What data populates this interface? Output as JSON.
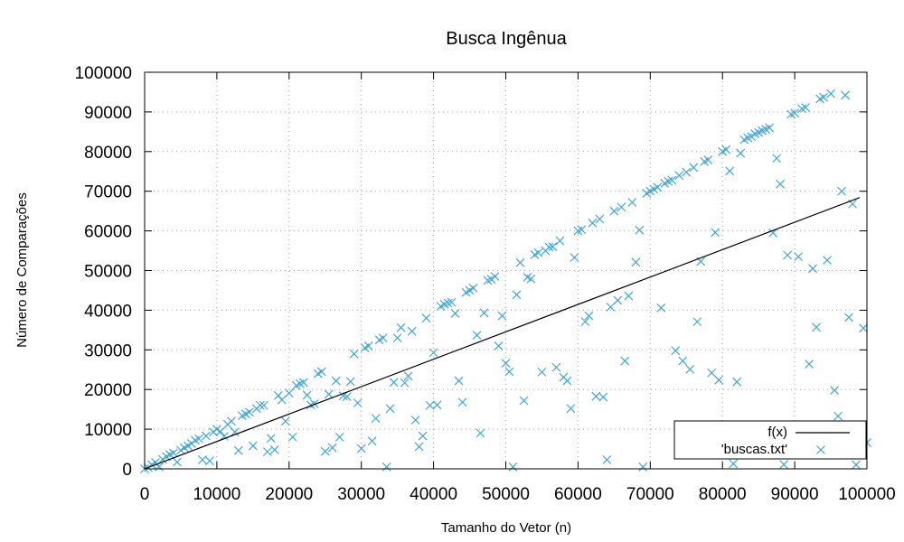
{
  "chart_data": {
    "type": "scatter",
    "title": "Busca Ingênua",
    "xlabel": "Tamanho do Vetor (n)",
    "ylabel": "Número de Comparações",
    "xlim": [
      0,
      100000
    ],
    "ylim": [
      0,
      100000
    ],
    "xticks": [
      0,
      10000,
      20000,
      30000,
      40000,
      50000,
      60000,
      70000,
      80000,
      90000,
      100000
    ],
    "yticks": [
      0,
      10000,
      20000,
      30000,
      40000,
      50000,
      60000,
      70000,
      80000,
      90000,
      100000
    ],
    "grid": true,
    "legend_position": "bottom-right",
    "colors": {
      "scatter": "#3fa6d8",
      "line": "#000000"
    },
    "series": [
      {
        "name": "f(x)",
        "type": "line",
        "points": [
          [
            0,
            0
          ],
          [
            99000,
            68400
          ]
        ]
      },
      {
        "name": "'buscas.txt'",
        "type": "scatter",
        "marker": "x",
        "points": [
          [
            0,
            0
          ],
          [
            500,
            300
          ],
          [
            1000,
            1000
          ],
          [
            1500,
            1600
          ],
          [
            2000,
            500
          ],
          [
            2500,
            2400
          ],
          [
            3000,
            3100
          ],
          [
            3500,
            3600
          ],
          [
            4000,
            4000
          ],
          [
            4500,
            1700
          ],
          [
            5000,
            4700
          ],
          [
            5500,
            5300
          ],
          [
            6000,
            5800
          ],
          [
            6500,
            6400
          ],
          [
            7000,
            7200
          ],
          [
            7500,
            7600
          ],
          [
            8000,
            2300
          ],
          [
            8500,
            8300
          ],
          [
            9000,
            2000
          ],
          [
            9500,
            9300
          ],
          [
            10000,
            10000
          ],
          [
            10500,
            9400
          ],
          [
            11000,
            8200
          ],
          [
            11500,
            11200
          ],
          [
            12000,
            12000
          ],
          [
            12500,
            9300
          ],
          [
            13000,
            4600
          ],
          [
            13500,
            13400
          ],
          [
            14000,
            13800
          ],
          [
            14500,
            14300
          ],
          [
            15000,
            5800
          ],
          [
            15500,
            15200
          ],
          [
            16000,
            16000
          ],
          [
            16500,
            16000
          ],
          [
            17000,
            4300
          ],
          [
            17500,
            7700
          ],
          [
            18000,
            4800
          ],
          [
            18500,
            18500
          ],
          [
            19000,
            17400
          ],
          [
            19500,
            12000
          ],
          [
            20000,
            19100
          ],
          [
            20500,
            8000
          ],
          [
            21000,
            21000
          ],
          [
            21500,
            21500
          ],
          [
            22000,
            21800
          ],
          [
            22500,
            18600
          ],
          [
            23000,
            16100
          ],
          [
            23500,
            16400
          ],
          [
            24000,
            24000
          ],
          [
            24500,
            24500
          ],
          [
            25000,
            4400
          ],
          [
            25500,
            18800
          ],
          [
            26000,
            5300
          ],
          [
            26500,
            22200
          ],
          [
            27000,
            8000
          ],
          [
            27500,
            18400
          ],
          [
            28000,
            18200
          ],
          [
            28500,
            22000
          ],
          [
            29000,
            29000
          ],
          [
            29500,
            16600
          ],
          [
            30000,
            5100
          ],
          [
            30500,
            30500
          ],
          [
            31000,
            31000
          ],
          [
            31500,
            7000
          ],
          [
            32000,
            12700
          ],
          [
            32500,
            32500
          ],
          [
            33000,
            33000
          ],
          [
            33500,
            500
          ],
          [
            34000,
            15200
          ],
          [
            34500,
            21800
          ],
          [
            35000,
            33000
          ],
          [
            35500,
            35600
          ],
          [
            36000,
            21700
          ],
          [
            36500,
            23400
          ],
          [
            37000,
            34700
          ],
          [
            37500,
            12300
          ],
          [
            38000,
            5600
          ],
          [
            38500,
            8300
          ],
          [
            39000,
            38000
          ],
          [
            39500,
            16000
          ],
          [
            40000,
            29300
          ],
          [
            40500,
            16100
          ],
          [
            41000,
            41000
          ],
          [
            41500,
            41500
          ],
          [
            42000,
            41800
          ],
          [
            42500,
            42000
          ],
          [
            43000,
            39200
          ],
          [
            43500,
            22200
          ],
          [
            44000,
            16800
          ],
          [
            44500,
            44500
          ],
          [
            45000,
            45000
          ],
          [
            45500,
            45600
          ],
          [
            46000,
            33700
          ],
          [
            46500,
            9000
          ],
          [
            47000,
            39300
          ],
          [
            47500,
            47500
          ],
          [
            48000,
            47800
          ],
          [
            48500,
            48500
          ],
          [
            49000,
            31000
          ],
          [
            49500,
            38600
          ],
          [
            50000,
            26600
          ],
          [
            50500,
            24500
          ],
          [
            51000,
            500
          ],
          [
            51500,
            43900
          ],
          [
            52000,
            52000
          ],
          [
            52500,
            17200
          ],
          [
            53000,
            48300
          ],
          [
            53500,
            47900
          ],
          [
            54000,
            54000
          ],
          [
            54500,
            54500
          ],
          [
            55000,
            24400
          ],
          [
            55500,
            55000
          ],
          [
            56000,
            55900
          ],
          [
            56500,
            56000
          ],
          [
            57000,
            25600
          ],
          [
            57500,
            57500
          ],
          [
            58000,
            23100
          ],
          [
            58500,
            22200
          ],
          [
            59000,
            15200
          ],
          [
            59500,
            53300
          ],
          [
            60000,
            60000
          ],
          [
            60500,
            60300
          ],
          [
            61000,
            37100
          ],
          [
            61500,
            38600
          ],
          [
            62000,
            62000
          ],
          [
            62500,
            18300
          ],
          [
            63000,
            63000
          ],
          [
            63500,
            18100
          ],
          [
            64000,
            2300
          ],
          [
            64500,
            40800
          ],
          [
            65000,
            65000
          ],
          [
            65500,
            42500
          ],
          [
            66000,
            66000
          ],
          [
            66500,
            27200
          ],
          [
            67000,
            43600
          ],
          [
            67500,
            67200
          ],
          [
            68000,
            52100
          ],
          [
            68500,
            60200
          ],
          [
            69000,
            500
          ],
          [
            69500,
            69500
          ],
          [
            70000,
            70000
          ],
          [
            70500,
            70500
          ],
          [
            71000,
            71000
          ],
          [
            71500,
            40600
          ],
          [
            72000,
            72000
          ],
          [
            72500,
            72500
          ],
          [
            73000,
            72800
          ],
          [
            73500,
            29800
          ],
          [
            74000,
            74000
          ],
          [
            74500,
            27200
          ],
          [
            75000,
            74800
          ],
          [
            75500,
            25100
          ],
          [
            76000,
            76000
          ],
          [
            76500,
            37100
          ],
          [
            77000,
            52300
          ],
          [
            77500,
            77500
          ],
          [
            78000,
            77900
          ],
          [
            78500,
            24200
          ],
          [
            79000,
            59600
          ],
          [
            79500,
            22400
          ],
          [
            80000,
            80000
          ],
          [
            80500,
            80500
          ],
          [
            81000,
            75100
          ],
          [
            81500,
            1300
          ],
          [
            82000,
            21900
          ],
          [
            82500,
            79600
          ],
          [
            83000,
            83000
          ],
          [
            83500,
            83500
          ],
          [
            84000,
            83800
          ],
          [
            84500,
            84500
          ],
          [
            85000,
            84800
          ],
          [
            85500,
            85300
          ],
          [
            86000,
            85600
          ],
          [
            86500,
            86000
          ],
          [
            87000,
            59500
          ],
          [
            87500,
            78300
          ],
          [
            88000,
            71800
          ],
          [
            88500,
            1100
          ],
          [
            89000,
            53900
          ],
          [
            89500,
            89400
          ],
          [
            90000,
            89700
          ],
          [
            90500,
            53500
          ],
          [
            91000,
            90800
          ],
          [
            91500,
            91100
          ],
          [
            92000,
            26400
          ],
          [
            92500,
            50500
          ],
          [
            93000,
            35700
          ],
          [
            93500,
            93300
          ],
          [
            94000,
            93700
          ],
          [
            94500,
            52600
          ],
          [
            95000,
            94600
          ],
          [
            95500,
            19800
          ],
          [
            96000,
            13300
          ],
          [
            96500,
            70000
          ],
          [
            97000,
            94200
          ],
          [
            97500,
            38200
          ],
          [
            98000,
            66800
          ],
          [
            98500,
            1000
          ],
          [
            99000,
            10000
          ],
          [
            99500,
            35500
          ],
          [
            100000,
            6600
          ]
        ]
      }
    ]
  }
}
